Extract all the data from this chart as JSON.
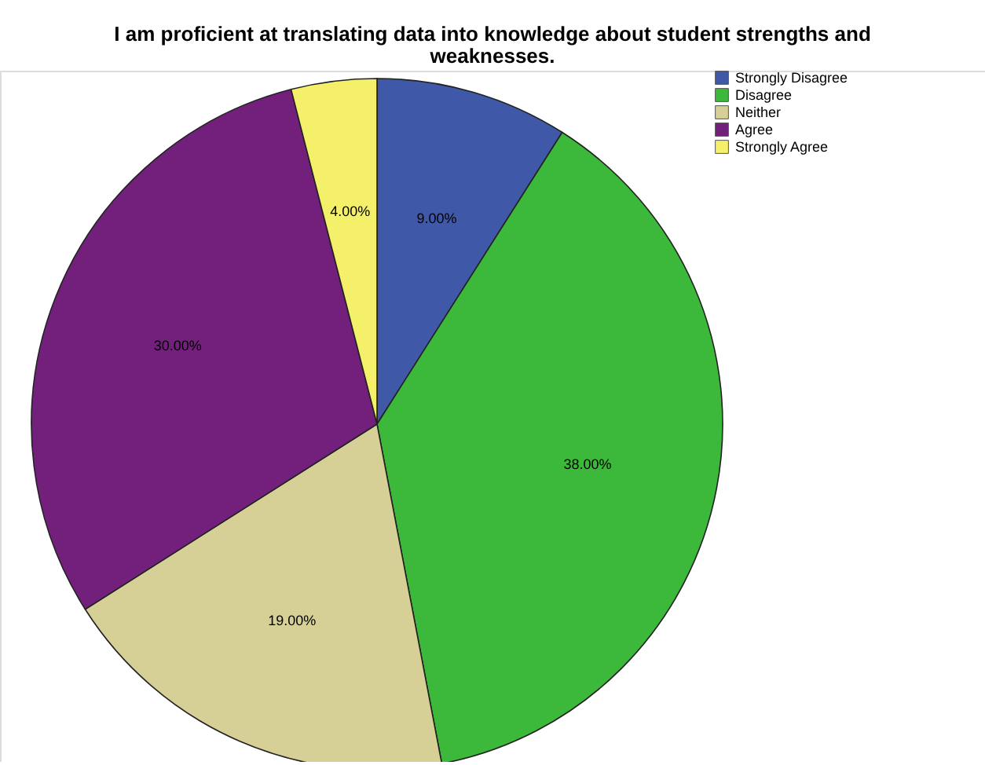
{
  "chart_data": {
    "type": "pie",
    "title": "I am proficient at translating data into knowledge about student strengths and weaknesses.",
    "categories": [
      "Strongly Disagree",
      "Disagree",
      "Neither",
      "Agree",
      "Strongly Agree"
    ],
    "values": [
      9,
      38,
      19,
      30,
      4
    ],
    "value_labels": [
      "9.00%",
      "38.00%",
      "19.00%",
      "30.00%",
      "4.00%"
    ],
    "colors": [
      "#3f58a8",
      "#3cb83a",
      "#d6cf96",
      "#72207c",
      "#f5f069"
    ],
    "legend": "top right"
  }
}
